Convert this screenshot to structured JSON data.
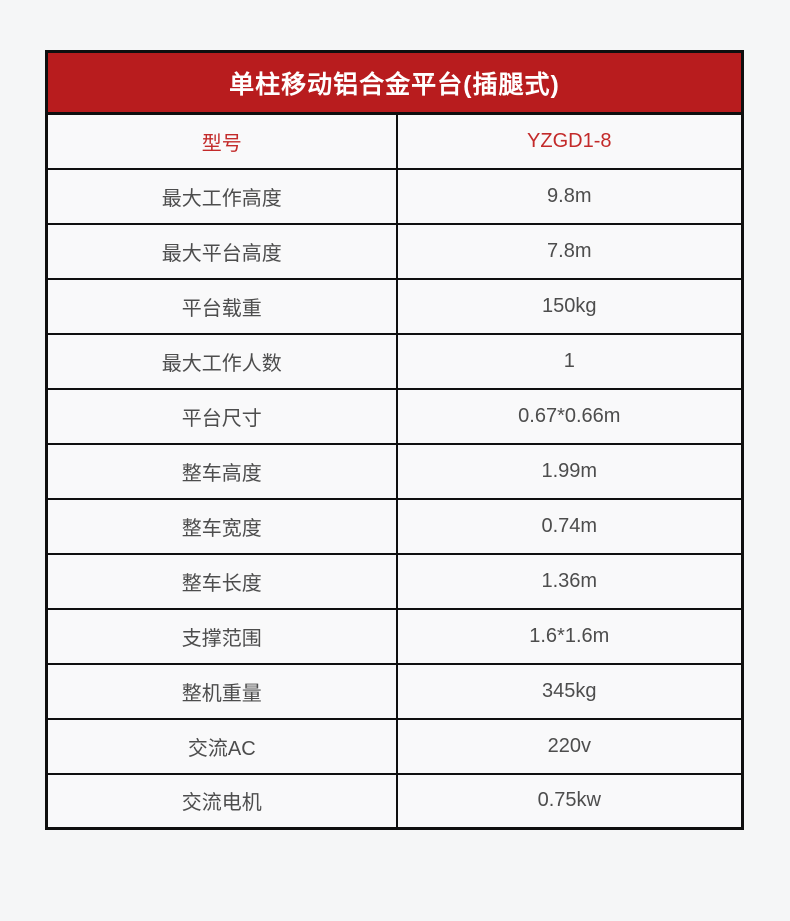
{
  "theme": {
    "page_bg": "#f5f6f7",
    "cell_bg": "#f9f9fa",
    "border_color": "#0f0f0f",
    "header_bg": "#b81c1e",
    "header_text": "#ffffff",
    "highlight_text": "#c32a2a",
    "body_text": "#4d4d4d"
  },
  "table": {
    "title": "单柱移动铝合金平台(插腿式)",
    "rows": [
      {
        "label": "型号",
        "value": "YZGD1-8",
        "highlight": true
      },
      {
        "label": "最大工作高度",
        "value": "9.8m",
        "highlight": false
      },
      {
        "label": "最大平台高度",
        "value": "7.8m",
        "highlight": false
      },
      {
        "label": "平台载重",
        "value": "150kg",
        "highlight": false
      },
      {
        "label": "最大工作人数",
        "value": "1",
        "highlight": false
      },
      {
        "label": "平台尺寸",
        "value": "0.67*0.66m",
        "highlight": false
      },
      {
        "label": "整车高度",
        "value": "1.99m",
        "highlight": false
      },
      {
        "label": "整车宽度",
        "value": "0.74m",
        "highlight": false
      },
      {
        "label": "整车长度",
        "value": "1.36m",
        "highlight": false
      },
      {
        "label": "支撑范围",
        "value": "1.6*1.6m",
        "highlight": false
      },
      {
        "label": "整机重量",
        "value": "345kg",
        "highlight": false
      },
      {
        "label": "交流AC",
        "value": "220v",
        "highlight": false
      },
      {
        "label": "交流电机",
        "value": "0.75kw",
        "highlight": false
      }
    ]
  }
}
